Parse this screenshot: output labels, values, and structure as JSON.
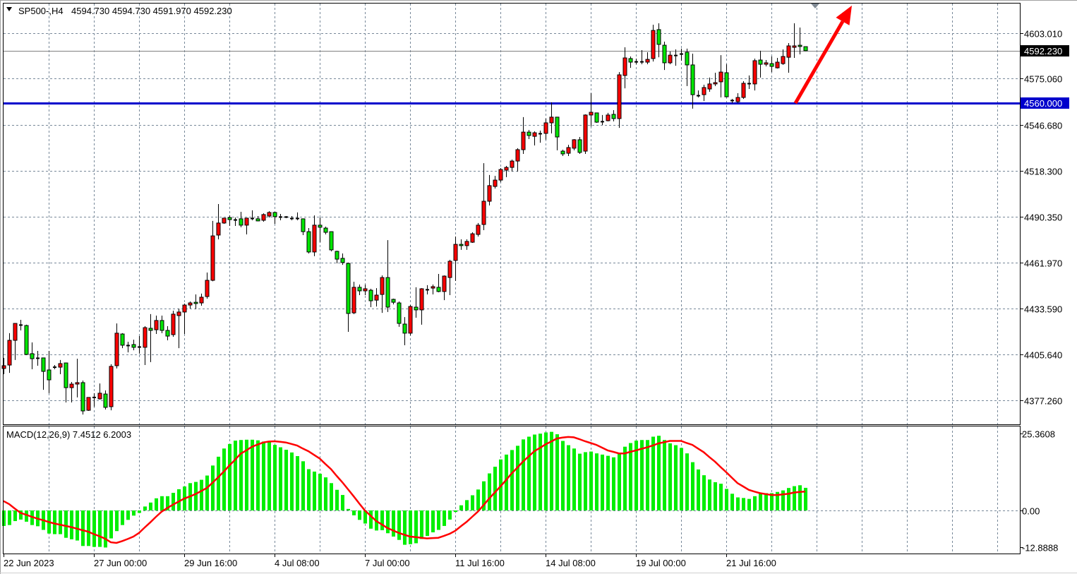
{
  "window": {
    "symbol_title": "SP500-,H4",
    "ohlc_readout": "4594.730 4594.730 4591.970 4592.230",
    "menu_icon": "triangle-down-icon"
  },
  "indicator": {
    "label": "MACD(12,26,9) 7.4512 6.2003"
  },
  "colors": {
    "bull_candle": "#ff0000",
    "bear_candle": "#00e600",
    "candle_outline": "#000000",
    "macd_histogram": "#00ee00",
    "signal_line": "#ff0000",
    "support_line": "#0000cc",
    "bid_line": "#808080",
    "arrow": "#ff0000",
    "grid": "#778899"
  },
  "chart_data": [
    {
      "type": "candlestick",
      "symbol": "SP500-",
      "timeframe": "H4",
      "grid": true,
      "price_axis": {
        "ticks": [
          "4603.010",
          "4575.060",
          "4546.680",
          "4518.300",
          "4490.350",
          "4461.970",
          "4433.590",
          "4405.640",
          "4377.260"
        ],
        "position": "right"
      },
      "time_labels": [
        {
          "label": "22 Jun 2023",
          "bar": 0
        },
        {
          "label": "27 Jun 00:00",
          "bar": 16
        },
        {
          "label": "29 Jun 16:00",
          "bar": 32
        },
        {
          "label": "4 Jul 08:00",
          "bar": 48
        },
        {
          "label": "7 Jul 00:00",
          "bar": 64
        },
        {
          "label": "11 Jul 16:00",
          "bar": 80
        },
        {
          "label": "14 Jul 08:00",
          "bar": 96
        },
        {
          "label": "19 Jul 00:00",
          "bar": 112
        },
        {
          "label": "21 Jul 16:00",
          "bar": 128
        }
      ],
      "open": [
        4396.9,
        4399.0,
        4414.2,
        4423.8,
        4423.3,
        4406.0,
        4403.4,
        4403.4,
        4396.0,
        4397.7,
        4397.7,
        4400.3,
        4385.1,
        4387.3,
        4388.2,
        4371.2,
        4379.1,
        4378.2,
        4381.2,
        4373.4,
        4398.6,
        4418.1,
        4411.2,
        4411.6,
        4410.3,
        4409.9,
        4421.6,
        4420.7,
        4426.4,
        4420.3,
        4417.7,
        4429.4,
        4431.6,
        4435.9,
        4437.6,
        4437.2,
        4441.1,
        4451.1,
        4478.9,
        4486.3,
        4489.7,
        4488.4,
        4488.9,
        4485.0,
        4489.3,
        4488.9,
        4488.0,
        4490.6,
        4492.8,
        4490.2,
        4489.7,
        4489.3,
        4489.3,
        4488.9,
        4481.0,
        4468.5,
        4485.0,
        4483.2,
        4481.0,
        4468.9,
        4464.6,
        4461.5,
        4431.1,
        4446.8,
        4444.6,
        4445.0,
        4438.9,
        4442.4,
        4452.8,
        4439.4,
        4437.2,
        4424.2,
        4418.6,
        4434.6,
        4432.9,
        4445.5,
        4446.3,
        4446.8,
        4444.2,
        4452.8,
        4463.3,
        4473.2,
        4472.4,
        4474.5,
        4479.3,
        4485.4,
        4499.7,
        4508.8,
        4512.7,
        4518.8,
        4520.5,
        4524.4,
        4531.4,
        4542.2,
        4539.6,
        4541.4,
        4541.4,
        4547.9,
        4551.4,
        4530.5,
        4529.2,
        4532.3,
        4537.5,
        4530.5,
        4552.7,
        4554.0,
        4548.8,
        4549.2,
        4553.1,
        4550.5,
        4577.0,
        4587.4,
        4585.6,
        4585.6,
        4585.2,
        4587.4,
        4605.2,
        4595.6,
        4584.8,
        4589.5,
        4590.4,
        4591.3,
        4583.5,
        4564.8,
        4565.2,
        4568.7,
        4571.8,
        4573.1,
        4578.7,
        4561.8,
        4560.9,
        4563.5,
        4572.2,
        4571.8,
        4586.5,
        4583.9,
        4584.3,
        4581.7,
        4584.3,
        4588.2,
        4594.3,
        4595.6,
        4594.73
      ],
      "high": [
        4403.4,
        4418.6,
        4424.6,
        4426.8,
        4423.8,
        4412.9,
        4407.7,
        4403.6,
        4407.7,
        4399.0,
        4402.1,
        4400.5,
        4388.6,
        4402.9,
        4389.5,
        4379.1,
        4381.7,
        4387.7,
        4383.4,
        4399.5,
        4424.6,
        4418.6,
        4413.3,
        4414.6,
        4416.8,
        4422.9,
        4430.3,
        4429.4,
        4429.4,
        4422.9,
        4432.4,
        4433.7,
        4436.8,
        4438.1,
        4442.4,
        4442.9,
        4455.9,
        4487.6,
        4498.0,
        4489.5,
        4491.0,
        4489.7,
        4493.2,
        4489.5,
        4494.1,
        4490.6,
        4492.3,
        4493.6,
        4493.2,
        4491.9,
        4490.6,
        4490.6,
        4492.8,
        4489.0,
        4483.2,
        4491.0,
        4489.7,
        4484.1,
        4481.1,
        4469.3,
        4467.6,
        4462.0,
        4450.2,
        4448.5,
        4448.5,
        4445.9,
        4446.3,
        4454.1,
        4475.8,
        4439.8,
        4438.1,
        4428.5,
        4435.9,
        4446.8,
        4446.3,
        4448.1,
        4448.5,
        4455.0,
        4454.1,
        4463.7,
        4478.0,
        4476.3,
        4476.3,
        4480.6,
        4486.3,
        4523.1,
        4515.8,
        4515.3,
        4520.1,
        4521.4,
        4525.3,
        4532.3,
        4551.4,
        4543.5,
        4542.7,
        4543.1,
        4550.5,
        4560.5,
        4551.5,
        4531.4,
        4534.4,
        4537.9,
        4539.2,
        4553.1,
        4566.1,
        4554.1,
        4552.7,
        4554.0,
        4555.7,
        4579.1,
        4594.3,
        4588.7,
        4587.4,
        4592.6,
        4591.3,
        4608.2,
        4609.1,
        4597.8,
        4591.7,
        4593.0,
        4593.5,
        4593.5,
        4590.4,
        4567.8,
        4571.3,
        4575.7,
        4578.7,
        4589.5,
        4583.9,
        4562.6,
        4566.1,
        4573.5,
        4577.0,
        4587.4,
        4592.2,
        4586.5,
        4588.7,
        4587.8,
        4593.0,
        4596.9,
        4609.1,
        4606.5,
        4594.73
      ],
      "low": [
        4393.4,
        4394.2,
        4402.1,
        4420.3,
        4405.1,
        4396.4,
        4398.6,
        4383.8,
        4381.7,
        4396.4,
        4393.4,
        4376.0,
        4376.0,
        4379.1,
        4368.6,
        4370.8,
        4373.4,
        4377.8,
        4371.7,
        4371.2,
        4396.9,
        4409.4,
        4406.8,
        4408.1,
        4406.0,
        4399.0,
        4400.8,
        4418.1,
        4418.6,
        4414.2,
        4416.4,
        4409.4,
        4418.1,
        4433.7,
        4433.3,
        4435.5,
        4439.8,
        4450.5,
        4476.3,
        4485.8,
        4484.5,
        4484.5,
        4483.7,
        4479.3,
        4488.0,
        4487.4,
        4487.1,
        4489.7,
        4485.8,
        4488.0,
        4489.3,
        4488.0,
        4488.0,
        4478.9,
        4467.6,
        4465.9,
        4474.5,
        4479.3,
        4468.9,
        4461.5,
        4460.6,
        4419.4,
        4430.3,
        4442.0,
        4442.0,
        4434.6,
        4435.0,
        4431.1,
        4431.6,
        4436.3,
        4422.5,
        4411.2,
        4417.2,
        4428.1,
        4423.8,
        4442.4,
        4442.4,
        4443.7,
        4438.9,
        4442.0,
        4450.7,
        4469.8,
        4469.8,
        4474.1,
        4478.0,
        4481.9,
        4497.1,
        4507.5,
        4511.4,
        4514.5,
        4517.9,
        4517.9,
        4528.8,
        4537.9,
        4534.0,
        4535.7,
        4537.5,
        4541.4,
        4531.0,
        4527.5,
        4527.5,
        4531.0,
        4528.8,
        4528.8,
        4545.7,
        4547.9,
        4546.6,
        4548.8,
        4548.8,
        4544.8,
        4569.1,
        4581.7,
        4583.9,
        4583.9,
        4583.9,
        4585.6,
        4588.2,
        4580.4,
        4583.9,
        4583.0,
        4586.1,
        4570.5,
        4556.6,
        4563.5,
        4561.3,
        4567.0,
        4570.5,
        4563.5,
        4563.5,
        4560.0,
        4560.0,
        4562.6,
        4568.7,
        4567.8,
        4575.7,
        4582.6,
        4579.1,
        4581.3,
        4583.5,
        4578.7,
        4587.8,
        4590.0,
        4591.97
      ],
      "close": [
        4398.6,
        4414.2,
        4424.6,
        4423.5,
        4405.5,
        4402.9,
        4403.2,
        4395.1,
        4389.9,
        4397.9,
        4399.9,
        4385.1,
        4387.3,
        4388.2,
        4370.8,
        4379.1,
        4379.3,
        4381.7,
        4373.0,
        4398.2,
        4418.6,
        4411.2,
        4411.0,
        4409.9,
        4410.1,
        4422.0,
        4420.3,
        4426.4,
        4420.3,
        4416.8,
        4430.3,
        4431.6,
        4435.9,
        4437.2,
        4436.8,
        4440.7,
        4451.1,
        4478.4,
        4486.3,
        4489.3,
        4488.4,
        4488.2,
        4485.0,
        4489.3,
        4489.1,
        4487.6,
        4491.5,
        4492.8,
        4490.2,
        4490.0,
        4490.2,
        4489.1,
        4489.1,
        4481.0,
        4468.5,
        4485.0,
        4483.7,
        4480.6,
        4469.8,
        4464.1,
        4462.0,
        4430.7,
        4446.8,
        4444.6,
        4445.9,
        4438.5,
        4442.0,
        4452.8,
        4434.6,
        4437.6,
        4424.6,
        4418.6,
        4435.0,
        4432.9,
        4445.9,
        4445.3,
        4447.2,
        4444.2,
        4453.7,
        4462.8,
        4473.2,
        4472.4,
        4475.0,
        4479.7,
        4485.0,
        4499.7,
        4509.3,
        4512.7,
        4519.2,
        4520.5,
        4524.4,
        4531.4,
        4542.2,
        4540.1,
        4541.8,
        4541.2,
        4547.9,
        4551.4,
        4539.2,
        4528.8,
        4532.7,
        4537.5,
        4529.7,
        4552.7,
        4554.4,
        4548.3,
        4548.6,
        4552.7,
        4550.5,
        4577.4,
        4587.8,
        4585.2,
        4585.4,
        4585.4,
        4586.9,
        4604.7,
        4596.1,
        4584.8,
        4589.5,
        4589.3,
        4590.2,
        4583.5,
        4565.2,
        4564.6,
        4569.6,
        4571.8,
        4572.6,
        4579.1,
        4563.9,
        4561.3,
        4563.5,
        4572.2,
        4572.0,
        4586.1,
        4583.9,
        4584.8,
        4582.6,
        4585.2,
        4588.7,
        4595.2,
        4595.2,
        4594.8,
        4592.23
      ],
      "levels": [
        {
          "label": "4592.230",
          "price": 4592.23,
          "kind": "bid"
        },
        {
          "label": "4560.000",
          "price": 4560.0,
          "kind": "horizontal-line"
        }
      ],
      "annotations": [
        {
          "type": "arrow",
          "from": {
            "bar": 140.25,
            "price": 4560.0
          },
          "to": {
            "bar": 150.25,
            "price": 4620.0
          }
        }
      ]
    },
    {
      "type": "bar",
      "name": "MACD(12,26,9)",
      "grid": true,
      "value_axis": {
        "ticks": [
          "25.3608",
          "0.00",
          "-12.8888"
        ],
        "ylim": [
          -12.8888,
          25.3608
        ]
      },
      "macd": [
        -5.1,
        -4.8,
        -3.5,
        -3.0,
        -3.7,
        -4.8,
        -5.2,
        -6.4,
        -7.6,
        -7.8,
        -7.8,
        -9.0,
        -9.5,
        -9.9,
        -11.7,
        -11.7,
        -12.0,
        -12.0,
        -12.2,
        -9.2,
        -6.8,
        -4.8,
        -3.1,
        -1.7,
        -0.8,
        1.3,
        2.6,
        4.0,
        4.7,
        4.7,
        5.8,
        7.0,
        7.9,
        9.0,
        9.4,
        10.1,
        11.5,
        14.8,
        17.7,
        20.4,
        21.9,
        23.0,
        23.2,
        23.3,
        23.3,
        23.1,
        22.7,
        22.6,
        21.6,
        20.8,
        20.0,
        19.1,
        17.9,
        16.2,
        13.6,
        12.8,
        12.1,
        10.9,
        9.0,
        6.8,
        5.1,
        0.5,
        -1.6,
        -3.1,
        -4.3,
        -6.0,
        -6.6,
        -6.5,
        -7.5,
        -8.6,
        -9.7,
        -11.3,
        -11.1,
        -10.8,
        -9.4,
        -8.4,
        -7.2,
        -6.4,
        -5.1,
        -3.0,
        -0.5,
        1.7,
        3.4,
        5.0,
        6.9,
        9.6,
        12.2,
        14.4,
        16.8,
        18.4,
        19.9,
        21.3,
        23.4,
        24.3,
        25.0,
        25.3,
        25.7,
        25.9,
        25.1,
        22.9,
        21.5,
        20.4,
        18.7,
        19.2,
        19.4,
        18.8,
        18.4,
        18.0,
        17.5,
        18.6,
        21.0,
        22.2,
        23.0,
        23.2,
        23.2,
        24.3,
        24.6,
        23.2,
        22.1,
        21.5,
        20.6,
        18.8,
        15.9,
        13.5,
        11.6,
        10.2,
        9.3,
        8.8,
        7.1,
        5.5,
        4.3,
        4.1,
        3.8,
        4.7,
        5.7,
        5.7,
        5.7,
        6.1,
        6.6,
        7.4,
        8.0,
        8.3,
        7.4512
      ],
      "signal": [
        3.1,
        2.1,
        0.6,
        -0.8,
        -1.4,
        -2.1,
        -2.7,
        -3.2,
        -3.8,
        -4.3,
        -4.7,
        -5.1,
        -5.5,
        -6.0,
        -6.5,
        -7.0,
        -7.8,
        -8.5,
        -9.3,
        -10.5,
        -10.7,
        -10.1,
        -9.4,
        -8.6,
        -7.4,
        -5.6,
        -3.9,
        -2.1,
        -0.4,
        0.8,
        1.9,
        2.9,
        3.9,
        4.6,
        5.4,
        6.4,
        7.4,
        9.1,
        10.9,
        12.8,
        14.8,
        16.7,
        18.7,
        19.8,
        21.0,
        21.7,
        22.4,
        22.7,
        22.8,
        22.6,
        22.4,
        21.9,
        21.4,
        20.4,
        19.5,
        18.3,
        17.1,
        15.3,
        13.6,
        11.4,
        9.3,
        7.0,
        4.7,
        2.3,
        0.0,
        -1.7,
        -3.5,
        -4.6,
        -5.8,
        -6.6,
        -7.4,
        -8.0,
        -8.6,
        -8.8,
        -9.0,
        -9.2,
        -9.1,
        -9.0,
        -8.4,
        -7.7,
        -6.7,
        -5.2,
        -3.8,
        -2.1,
        -0.4,
        1.7,
        3.9,
        5.9,
        7.9,
        10.0,
        12.2,
        14.1,
        16.1,
        17.8,
        19.5,
        20.6,
        21.8,
        22.7,
        23.7,
        24.0,
        24.2,
        24.1,
        23.5,
        22.8,
        22.2,
        21.6,
        20.7,
        19.8,
        19.3,
        18.8,
        18.8,
        19.3,
        19.8,
        20.3,
        20.8,
        21.4,
        22.1,
        22.5,
        22.9,
        22.9,
        22.9,
        22.2,
        21.6,
        20.4,
        19.2,
        17.6,
        16.1,
        14.3,
        12.6,
        10.8,
        9.0,
        7.9,
        6.8,
        6.2,
        5.7,
        5.4,
        5.1,
        5.1,
        5.3,
        5.5,
        5.9,
        6.1,
        6.2003
      ]
    }
  ]
}
